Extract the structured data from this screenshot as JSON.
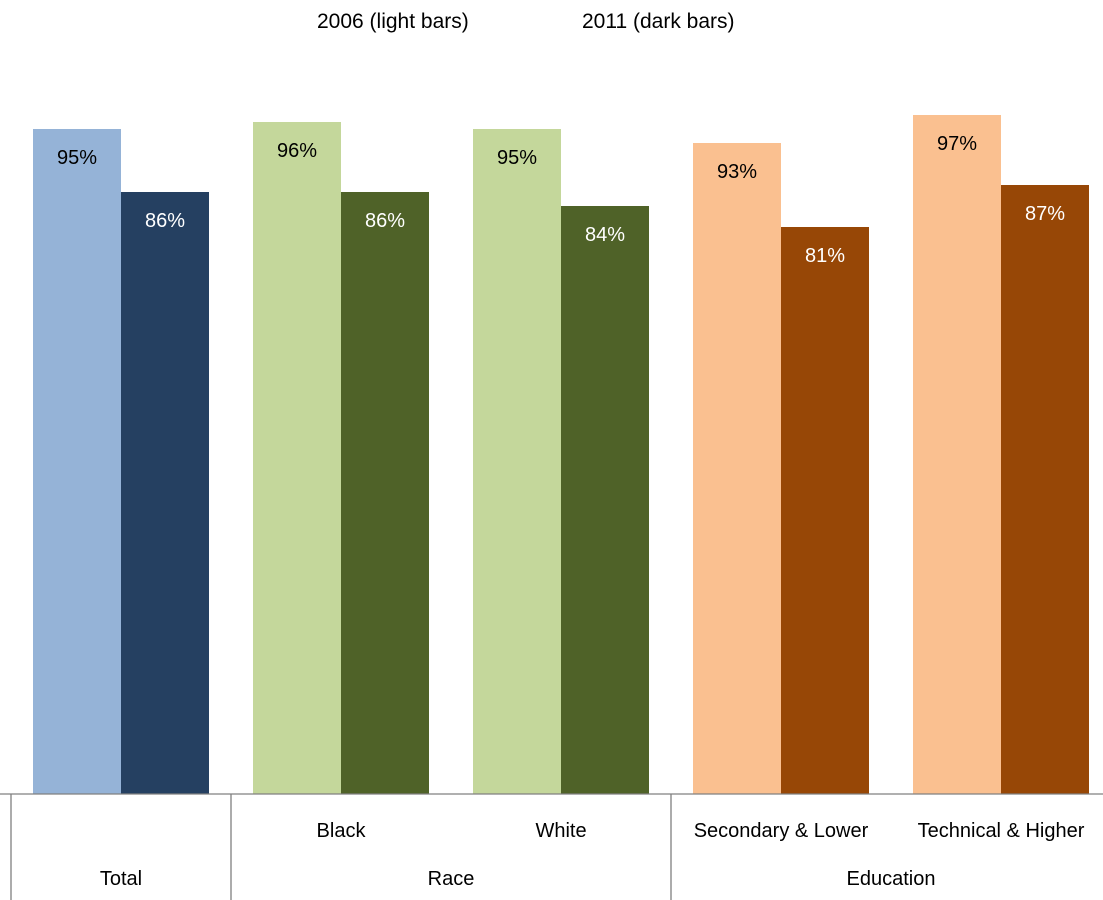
{
  "legend": {
    "light": "2006 (light bars)",
    "dark": "2011 (dark bars)"
  },
  "chart_data": {
    "type": "bar",
    "title": "",
    "xlabel": "",
    "ylabel": "",
    "ylim": [
      0,
      100
    ],
    "grid": false,
    "series_names": [
      "2006",
      "2011"
    ],
    "categories": [
      "",
      "Black",
      "White",
      "Secondary & Lower",
      "Technical & Higher"
    ],
    "groups": [
      {
        "label": "Total",
        "members": [
          0
        ]
      },
      {
        "label": "Race",
        "members": [
          1,
          2
        ]
      },
      {
        "label": "Education",
        "members": [
          3,
          4
        ]
      }
    ],
    "bars": [
      {
        "category": "",
        "group": "Total",
        "v2006": 95,
        "v2011": 86,
        "label2006": "95%",
        "label2011": "86%",
        "light": "#95b3d7",
        "dark": "#254061",
        "lightText": "#000000",
        "darkText": "#ffffff"
      },
      {
        "category": "Black",
        "group": "Race",
        "v2006": 96,
        "v2011": 86,
        "label2006": "96%",
        "label2011": "86%",
        "light": "#c4d79b",
        "dark": "#4f6228",
        "lightText": "#000000",
        "darkText": "#ffffff"
      },
      {
        "category": "White",
        "group": "Race",
        "v2006": 95,
        "v2011": 84,
        "label2006": "95%",
        "label2011": "84%",
        "light": "#c4d79b",
        "dark": "#4f6228",
        "lightText": "#000000",
        "darkText": "#ffffff"
      },
      {
        "category": "Secondary & Lower",
        "group": "Education",
        "v2006": 93,
        "v2011": 81,
        "label2006": "93%",
        "label2011": "81%",
        "light": "#fac090",
        "dark": "#974706",
        "lightText": "#000000",
        "darkText": "#ffffff"
      },
      {
        "category": "Technical & Higher",
        "group": "Education",
        "v2006": 97,
        "v2011": 87,
        "label2006": "97%",
        "label2011": "87%",
        "light": "#fac090",
        "dark": "#974706",
        "lightText": "#000000",
        "darkText": "#ffffff"
      }
    ]
  }
}
